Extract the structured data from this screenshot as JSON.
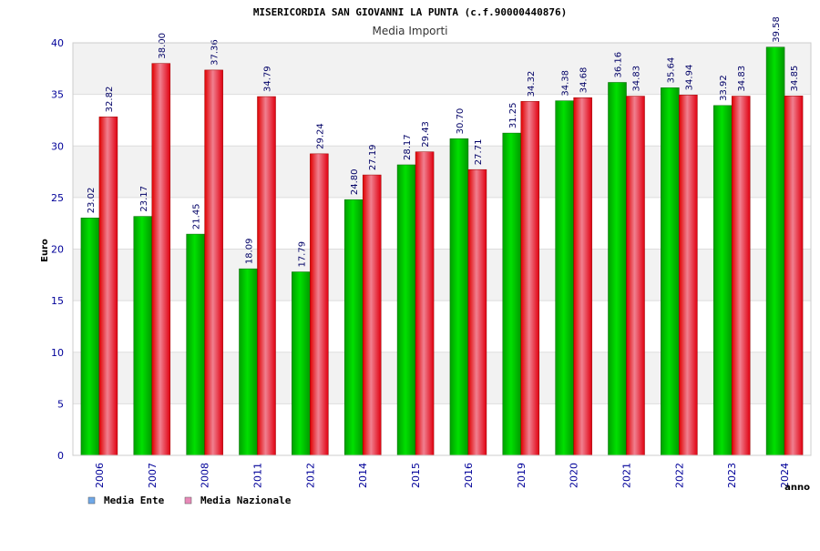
{
  "chart_data": {
    "type": "bar",
    "title": "MISERICORDIA SAN GIOVANNI LA PUNTA (c.f.90000440876)",
    "subtitle": "Media Importi",
    "xlabel": "anno",
    "ylabel": "Euro",
    "ylim": [
      0,
      40
    ],
    "yticks": [
      0,
      5,
      10,
      15,
      20,
      25,
      30,
      35,
      40
    ],
    "grid": true,
    "legend_position": "bottom-left",
    "categories": [
      "2006",
      "2007",
      "2008",
      "2011",
      "2012",
      "2014",
      "2015",
      "2016",
      "2019",
      "2020",
      "2021",
      "2022",
      "2023",
      "2024"
    ],
    "series": [
      {
        "name": "Media Ente",
        "color": "#00cc00",
        "legend_color": "#6fa8e8",
        "values": [
          23.02,
          23.17,
          21.45,
          18.09,
          17.79,
          24.8,
          28.17,
          30.7,
          31.25,
          34.38,
          36.16,
          35.64,
          33.92,
          39.58
        ],
        "labels": [
          "23.02",
          "23.17",
          "21.45",
          "18.09",
          "17.79",
          "24.80",
          "28.17",
          "30.70",
          "31.25",
          "34.38",
          "36.16",
          "35.64",
          "33.92",
          "39.58"
        ]
      },
      {
        "name": "Media Nazionale",
        "color": "#ee1111",
        "legend_color": "#e889b8",
        "values": [
          32.82,
          38.0,
          37.36,
          34.79,
          29.24,
          27.19,
          29.43,
          27.71,
          34.32,
          34.68,
          34.83,
          34.94,
          34.83,
          34.85
        ],
        "labels": [
          "32.82",
          "38.00",
          "37.36",
          "34.79",
          "29.24",
          "27.19",
          "29.43",
          "27.71",
          "34.32",
          "34.68",
          "34.83",
          "34.94",
          "34.83",
          "34.85"
        ]
      }
    ]
  }
}
